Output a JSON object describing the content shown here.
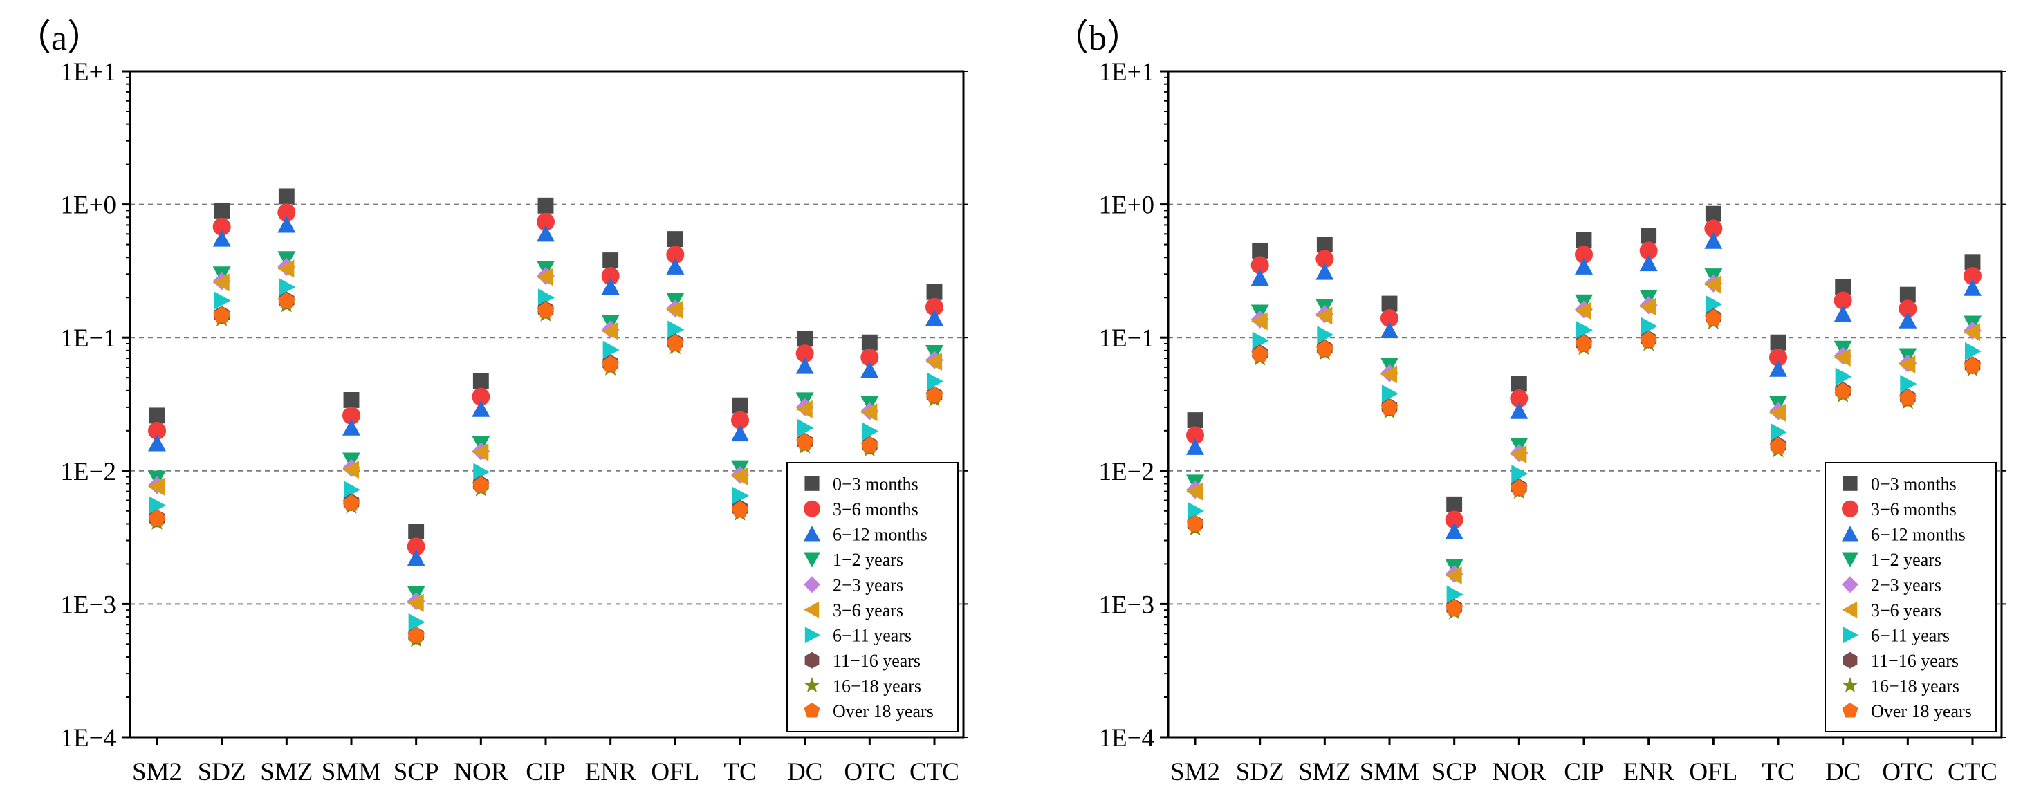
{
  "chart_data": [
    {
      "type": "scatter",
      "panel_label": "（a）",
      "title": "",
      "xlabel": "",
      "ylabel": "",
      "yscale": "log",
      "ylim": [
        0.0001,
        10
      ],
      "y_tick_labels": [
        "1E−4",
        "1E−3",
        "1E−2",
        "1E−1",
        "1E+0",
        "1E+1"
      ],
      "grid": "dashed horizontal at each decade",
      "legend_position": "bottom-right",
      "categories": [
        "SM2",
        "SDZ",
        "SMZ",
        "SMM",
        "SCP",
        "NOR",
        "CIP",
        "ENR",
        "OFL",
        "TC",
        "DC",
        "OTC",
        "CTC"
      ],
      "series": [
        {
          "name": "0−3 months",
          "marker": "square",
          "color": "#4a4a4a",
          "values": [
            0.026,
            0.9,
            1.15,
            0.034,
            0.0035,
            0.047,
            0.98,
            0.38,
            0.55,
            0.031,
            0.098,
            0.092,
            0.22
          ]
        },
        {
          "name": "3−6 months",
          "marker": "circle",
          "color": "#f23b3b",
          "values": [
            0.02,
            0.68,
            0.87,
            0.026,
            0.0027,
            0.036,
            0.74,
            0.29,
            0.42,
            0.024,
            0.076,
            0.071,
            0.17
          ]
        },
        {
          "name": "6−12 months",
          "marker": "triangle-up",
          "color": "#1f6fe0",
          "values": [
            0.016,
            0.55,
            0.7,
            0.021,
            0.0022,
            0.029,
            0.6,
            0.24,
            0.34,
            0.019,
            0.061,
            0.057,
            0.14
          ]
        },
        {
          "name": "1−2 years",
          "marker": "triangle-down",
          "color": "#12a86a",
          "values": [
            0.0088,
            0.3,
            0.39,
            0.012,
            0.0012,
            0.016,
            0.33,
            0.13,
            0.19,
            0.0105,
            0.034,
            0.032,
            0.077
          ]
        },
        {
          "name": "2−3 years",
          "marker": "diamond",
          "color": "#c080e0",
          "values": [
            0.0078,
            0.265,
            0.34,
            0.0105,
            0.00105,
            0.014,
            0.29,
            0.115,
            0.165,
            0.0093,
            0.03,
            0.028,
            0.068
          ]
        },
        {
          "name": "3−6 years",
          "marker": "triangle-left",
          "color": "#dc9a18",
          "values": [
            0.0076,
            0.26,
            0.33,
            0.0102,
            0.00102,
            0.0138,
            0.285,
            0.112,
            0.162,
            0.0091,
            0.029,
            0.0275,
            0.066
          ]
        },
        {
          "name": "6−11 years",
          "marker": "triangle-right",
          "color": "#18c8c8",
          "values": [
            0.0055,
            0.19,
            0.24,
            0.0072,
            0.00073,
            0.0098,
            0.2,
            0.081,
            0.115,
            0.0065,
            0.021,
            0.0198,
            0.047
          ]
        },
        {
          "name": "11−16 years",
          "marker": "hexagon",
          "color": "#7b4a4a",
          "values": [
            0.0044,
            0.148,
            0.19,
            0.0058,
            0.00058,
            0.0079,
            0.162,
            0.064,
            0.092,
            0.0052,
            0.0165,
            0.0156,
            0.037
          ]
        },
        {
          "name": "16−18 years",
          "marker": "star",
          "color": "#7f8a10",
          "values": [
            0.0041,
            0.138,
            0.176,
            0.0054,
            0.00054,
            0.0073,
            0.15,
            0.059,
            0.085,
            0.0048,
            0.0153,
            0.0145,
            0.0345
          ]
        },
        {
          "name": "Over 18 years",
          "marker": "pentagon",
          "color": "#f86a14",
          "values": [
            0.0044,
            0.147,
            0.188,
            0.0057,
            0.00058,
            0.0078,
            0.16,
            0.063,
            0.091,
            0.0051,
            0.0164,
            0.0155,
            0.0368
          ]
        }
      ]
    },
    {
      "type": "scatter",
      "panel_label": "（b）",
      "title": "",
      "xlabel": "",
      "ylabel": "",
      "yscale": "log",
      "ylim": [
        0.0001,
        10
      ],
      "y_tick_labels": [
        "1E−4",
        "1E−3",
        "1E−2",
        "1E−1",
        "1E+0",
        "1E+1"
      ],
      "grid": "dashed horizontal at each decade",
      "legend_position": "bottom-right",
      "categories": [
        "SM2",
        "SDZ",
        "SMZ",
        "SMM",
        "SCP",
        "NOR",
        "CIP",
        "ENR",
        "OFL",
        "TC",
        "DC",
        "OTC",
        "CTC"
      ],
      "series": [
        {
          "name": "0−3 months",
          "marker": "square",
          "color": "#4a4a4a",
          "values": [
            0.024,
            0.45,
            0.5,
            0.18,
            0.0056,
            0.045,
            0.54,
            0.58,
            0.85,
            0.092,
            0.24,
            0.21,
            0.37
          ]
        },
        {
          "name": "3−6 months",
          "marker": "circle",
          "color": "#f23b3b",
          "values": [
            0.0185,
            0.35,
            0.39,
            0.14,
            0.0043,
            0.035,
            0.42,
            0.45,
            0.66,
            0.071,
            0.19,
            0.165,
            0.29
          ]
        },
        {
          "name": "6−12 months",
          "marker": "triangle-up",
          "color": "#1f6fe0",
          "values": [
            0.015,
            0.28,
            0.31,
            0.113,
            0.0035,
            0.028,
            0.34,
            0.36,
            0.53,
            0.058,
            0.15,
            0.134,
            0.235
          ]
        },
        {
          "name": "1−2 years",
          "marker": "triangle-down",
          "color": "#12a86a",
          "values": [
            0.0082,
            0.155,
            0.17,
            0.062,
            0.0019,
            0.0155,
            0.185,
            0.2,
            0.29,
            0.032,
            0.083,
            0.073,
            0.128
          ]
        },
        {
          "name": "2−3 years",
          "marker": "diamond",
          "color": "#c080e0",
          "values": [
            0.0072,
            0.137,
            0.15,
            0.054,
            0.00168,
            0.0136,
            0.163,
            0.175,
            0.255,
            0.028,
            0.073,
            0.064,
            0.113
          ]
        },
        {
          "name": "3−6 years",
          "marker": "triangle-left",
          "color": "#dc9a18",
          "values": [
            0.007,
            0.133,
            0.146,
            0.053,
            0.00164,
            0.0133,
            0.159,
            0.171,
            0.25,
            0.0273,
            0.071,
            0.063,
            0.11
          ]
        },
        {
          "name": "6−11 years",
          "marker": "triangle-right",
          "color": "#18c8c8",
          "values": [
            0.005,
            0.095,
            0.105,
            0.038,
            0.00118,
            0.0095,
            0.114,
            0.122,
            0.178,
            0.0195,
            0.051,
            0.045,
            0.079
          ]
        },
        {
          "name": "11−16 years",
          "marker": "hexagon",
          "color": "#7b4a4a",
          "values": [
            0.004,
            0.076,
            0.083,
            0.03,
            0.00094,
            0.0075,
            0.091,
            0.097,
            0.142,
            0.0155,
            0.04,
            0.0355,
            0.062
          ]
        },
        {
          "name": "16−18 years",
          "marker": "star",
          "color": "#7f8a10",
          "values": [
            0.0037,
            0.07,
            0.077,
            0.028,
            0.00087,
            0.007,
            0.084,
            0.09,
            0.131,
            0.0143,
            0.037,
            0.033,
            0.058
          ]
        },
        {
          "name": "Over 18 years",
          "marker": "pentagon",
          "color": "#f86a14",
          "values": [
            0.004,
            0.075,
            0.082,
            0.0298,
            0.00093,
            0.0074,
            0.09,
            0.096,
            0.14,
            0.0153,
            0.0395,
            0.0352,
            0.0615
          ]
        }
      ]
    }
  ]
}
